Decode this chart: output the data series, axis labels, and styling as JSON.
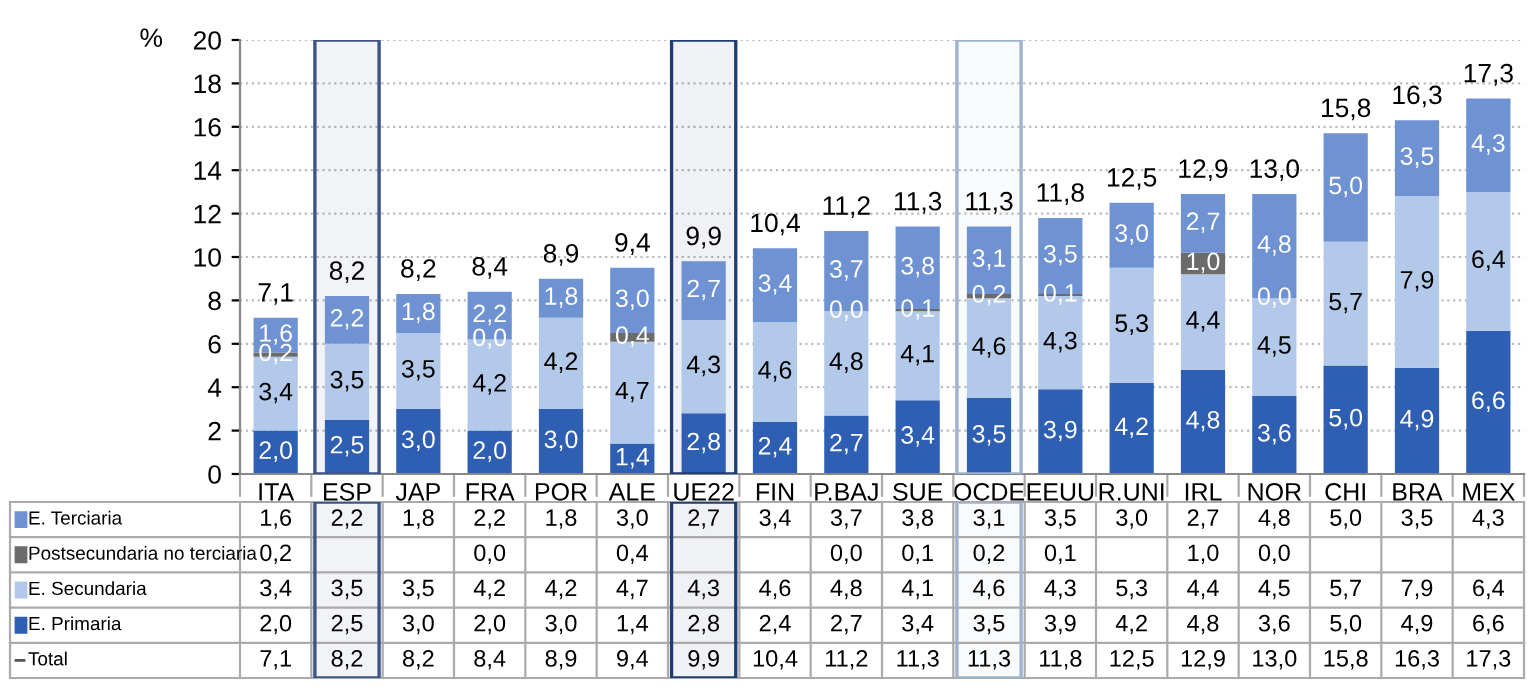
{
  "chart_data": {
    "type": "bar",
    "stacked": true,
    "ylabel": "%",
    "categories": [
      "ITA",
      "ESP",
      "JAP",
      "FRA",
      "POR",
      "ALE",
      "UE22",
      "FIN",
      "P.BAJ",
      "SUE",
      "OCDE",
      "EEUU",
      "R.UNI",
      "IRL",
      "NOR",
      "CHI",
      "BRA",
      "MEX"
    ],
    "series": [
      {
        "name": "E. Primaria",
        "color": "#2f5fb3",
        "values": [
          2.0,
          2.5,
          3.0,
          2.0,
          3.0,
          1.4,
          2.8,
          2.4,
          2.7,
          3.4,
          3.5,
          3.9,
          4.2,
          4.8,
          3.6,
          5.0,
          4.9,
          6.6
        ],
        "value_labels": [
          "2,0",
          "2,5",
          "3,0",
          "2,0",
          "3,0",
          "1,4",
          "2,8",
          "2,4",
          "2,7",
          "3,4",
          "3,5",
          "3,9",
          "4,2",
          "4,8",
          "3,6",
          "5,0",
          "4,9",
          "6,6"
        ]
      },
      {
        "name": "E. Secundaria",
        "color": "#b3c9ea",
        "values": [
          3.4,
          3.5,
          3.5,
          4.2,
          4.2,
          4.7,
          4.3,
          4.6,
          4.8,
          4.1,
          4.6,
          4.3,
          5.3,
          4.4,
          4.5,
          5.7,
          7.9,
          6.4
        ],
        "value_labels": [
          "3,4",
          "3,5",
          "3,5",
          "4,2",
          "4,2",
          "4,7",
          "4,3",
          "4,6",
          "4,8",
          "4,1",
          "4,6",
          "4,3",
          "5,3",
          "4,4",
          "4,5",
          "5,7",
          "7,9",
          "6,4"
        ]
      },
      {
        "name": "Postsecundaria no terciaria",
        "color": "#6b6b6b",
        "values": [
          0.2,
          null,
          null,
          0.0,
          null,
          0.4,
          null,
          null,
          0.0,
          0.1,
          0.2,
          0.1,
          null,
          1.0,
          0.0,
          null,
          null,
          null
        ],
        "value_labels": [
          "0,2",
          null,
          null,
          "0,0",
          null,
          "0,4",
          null,
          null,
          "0,0",
          "0,1",
          "0,2",
          "0,1",
          null,
          "1,0",
          "0,0",
          null,
          null,
          null
        ]
      },
      {
        "name": "E. Terciaria",
        "color": "#6e92d2",
        "values": [
          1.6,
          2.2,
          1.8,
          2.2,
          1.8,
          3.0,
          2.7,
          3.4,
          3.7,
          3.8,
          3.1,
          3.5,
          3.0,
          2.7,
          4.8,
          5.0,
          3.5,
          4.3
        ],
        "value_labels": [
          "1,6",
          "2,2",
          "1,8",
          "2,2",
          "1,8",
          "3,0",
          "2,7",
          "3,4",
          "3,7",
          "3,8",
          "3,1",
          "3,5",
          "3,0",
          "2,7",
          "4,8",
          "5,0",
          "3,5",
          "4,3"
        ]
      }
    ],
    "totals": [
      "7,1",
      "8,2",
      "8,2",
      "8,4",
      "8,9",
      "9,4",
      "9,9",
      "10,4",
      "11,2",
      "11,3",
      "11,3",
      "11,8",
      "12,5",
      "12,9",
      "13,0",
      "15,8",
      "16,3",
      "17,3"
    ],
    "annotations": [
      "Total"
    ],
    "ylim": [
      0,
      20
    ],
    "yticks": [
      0,
      2,
      4,
      6,
      8,
      10,
      12,
      14,
      16,
      18,
      20
    ],
    "grid": "y",
    "legend": "bottom left",
    "bands": [
      {
        "axis": "x",
        "from": "ESP",
        "to": "ESP",
        "color": "#3b5488"
      },
      {
        "axis": "x",
        "from": "UE22",
        "to": "UE22",
        "color": "#1f3d73"
      },
      {
        "axis": "x",
        "from": "OCDE",
        "to": "OCDE",
        "color": "#9fb2cc"
      }
    ]
  }
}
